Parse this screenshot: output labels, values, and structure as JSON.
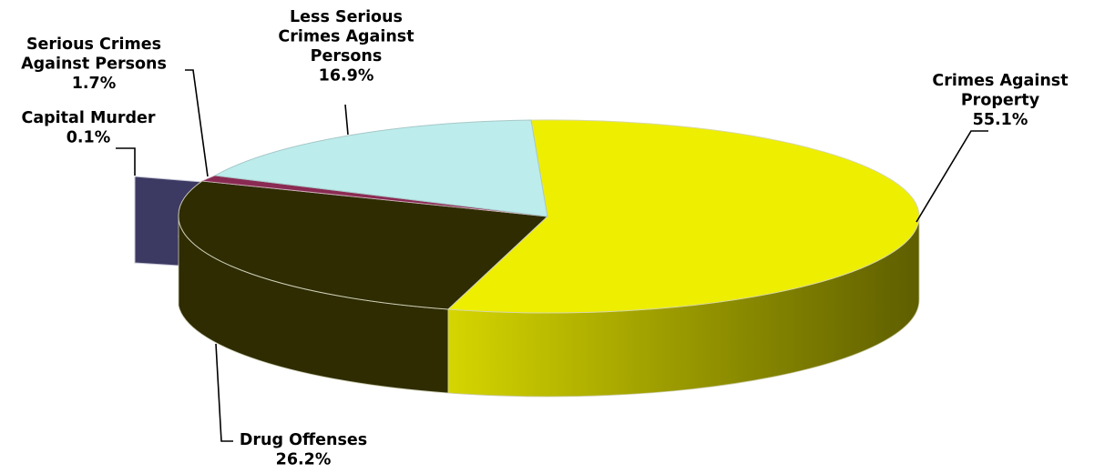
{
  "chart_data": {
    "type": "pie",
    "style": "3d-exploded",
    "title": "",
    "slices": [
      {
        "label_lines": [
          "Crimes Against",
          "Property"
        ],
        "value_label": "55.1%",
        "value": 55.1,
        "color": "#eeee00",
        "side_color": "#b4b400"
      },
      {
        "label_lines": [
          "Drug Offenses"
        ],
        "value_label": "26.2%",
        "value": 26.2,
        "color": "#2e2c00",
        "side_color": "#2e2c00"
      },
      {
        "label_lines": [
          "Capital Murder"
        ],
        "value_label": "0.1%",
        "value": 0.1,
        "color": "#3c3a62",
        "side_color": "#3c3a62"
      },
      {
        "label_lines": [
          "Serious Crimes",
          "Against Persons"
        ],
        "value_label": "1.7%",
        "value": 1.7,
        "color": "#8a2a52",
        "side_color": "#6a1f3e"
      },
      {
        "label_lines": [
          "Less Serious",
          "Crimes Against",
          "Persons"
        ],
        "value_label": "16.9%",
        "value": 16.9,
        "color": "#bcecec",
        "side_color": "#9ccccc"
      }
    ],
    "legend": "none"
  }
}
